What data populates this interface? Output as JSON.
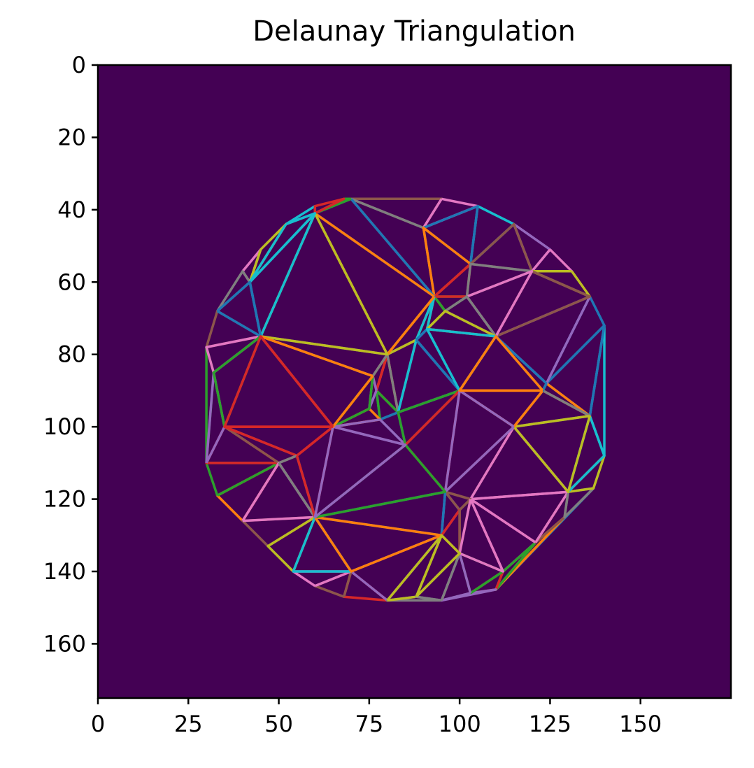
{
  "chart_data": {
    "type": "image-with-line-overlay",
    "title": "Delaunay Triangulation",
    "xlabel": "",
    "ylabel": "",
    "xlim": [
      0,
      175
    ],
    "ylim": [
      175,
      0
    ],
    "xticks": [
      0,
      25,
      50,
      75,
      100,
      125,
      150
    ],
    "yticks": [
      0,
      20,
      40,
      60,
      80,
      100,
      120,
      140,
      160
    ],
    "background_color": "#440154",
    "line_colors": [
      "#1f77b4",
      "#ff7f0e",
      "#2ca02c",
      "#d62728",
      "#9467bd",
      "#8c564b",
      "#e377c2",
      "#7f7f7f",
      "#bcbd22",
      "#17becf"
    ],
    "hull_points": [
      [
        30,
        78
      ],
      [
        33,
        68
      ],
      [
        40,
        57
      ],
      [
        45,
        51
      ],
      [
        52,
        44
      ],
      [
        60,
        39
      ],
      [
        70,
        37
      ],
      [
        95,
        37
      ],
      [
        105,
        39
      ],
      [
        115,
        44
      ],
      [
        125,
        51
      ],
      [
        131,
        57
      ],
      [
        136,
        64
      ],
      [
        140,
        72
      ],
      [
        140,
        108
      ],
      [
        137,
        117
      ],
      [
        129,
        125
      ],
      [
        121,
        132
      ],
      [
        112,
        140
      ],
      [
        103,
        146
      ],
      [
        95,
        148
      ],
      [
        80,
        148
      ],
      [
        68,
        147
      ],
      [
        60,
        144
      ],
      [
        54,
        140
      ],
      [
        47,
        133
      ],
      [
        40,
        126
      ],
      [
        33,
        119
      ],
      [
        30,
        110
      ]
    ],
    "interior_points": [
      [
        80,
        80
      ],
      [
        77,
        90
      ],
      [
        75,
        95
      ],
      [
        78,
        98
      ],
      [
        83,
        96
      ],
      [
        76,
        86
      ],
      [
        90,
        45
      ],
      [
        93,
        64
      ],
      [
        91,
        73
      ],
      [
        96,
        68
      ],
      [
        103,
        55
      ],
      [
        102,
        64
      ],
      [
        96,
        118
      ],
      [
        100,
        123
      ],
      [
        95,
        130
      ],
      [
        103,
        120
      ],
      [
        88,
        76
      ],
      [
        124,
        88
      ],
      [
        123,
        90
      ],
      [
        50,
        110
      ],
      [
        55,
        108
      ],
      [
        70,
        140
      ],
      [
        88,
        147
      ],
      [
        60,
        41
      ],
      [
        68,
        37
      ],
      [
        120,
        57
      ],
      [
        136,
        97
      ],
      [
        32,
        85
      ],
      [
        35,
        100
      ],
      [
        42,
        60
      ],
      [
        110,
        145
      ],
      [
        130,
        118
      ],
      [
        85,
        105
      ],
      [
        65,
        100
      ],
      [
        115,
        100
      ],
      [
        100,
        90
      ],
      [
        60,
        125
      ],
      [
        45,
        75
      ],
      [
        110,
        75
      ],
      [
        100,
        135
      ]
    ]
  }
}
